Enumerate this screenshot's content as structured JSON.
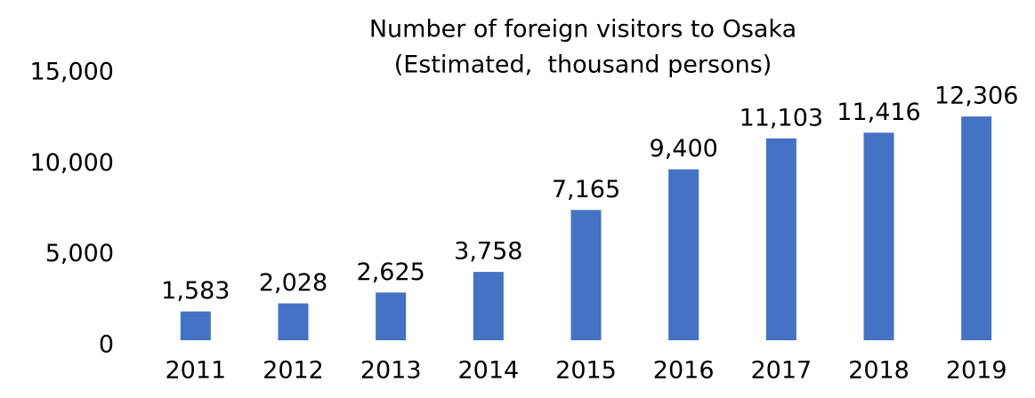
{
  "chart_data": {
    "type": "bar",
    "title": [
      "Number of foreign visitors to Osaka",
      "(Estimated,  thousand persons)"
    ],
    "categories": [
      "2011",
      "2012",
      "2013",
      "2014",
      "2015",
      "2016",
      "2017",
      "2018",
      "2019"
    ],
    "values": [
      1583,
      2028,
      2625,
      3758,
      7165,
      9400,
      11103,
      11416,
      12306
    ],
    "value_labels": [
      "1,583",
      "2,028",
      "2,625",
      "3,758",
      "7,165",
      "9,400",
      "11,103",
      "11,416",
      "12,306"
    ],
    "color": "#4472c4",
    "ylim": [
      0,
      15000
    ],
    "yticks": [
      0,
      {
        "value": 5000,
        "label": "5,000"
      },
      {
        "value": 10000,
        "label": "10,000"
      },
      {
        "value": 15000,
        "label": "15,000"
      }
    ],
    "grid": false
  }
}
